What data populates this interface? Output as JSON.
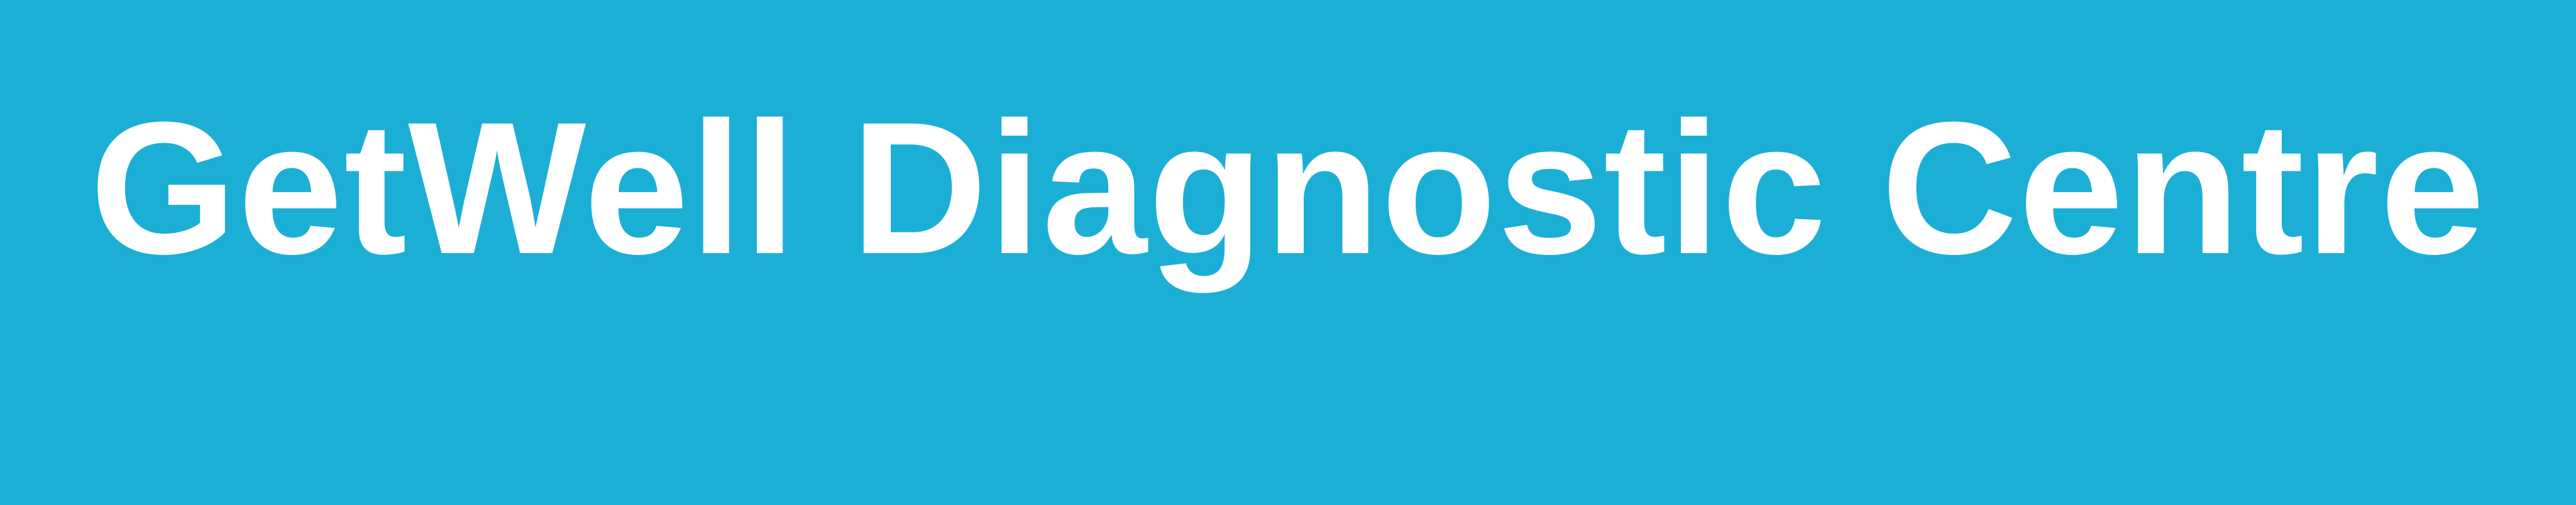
{
  "banner": {
    "title": "GetWell Diagnostic Centre",
    "background_color": "#1CAFD6",
    "text_color": "#FFFFFF"
  }
}
